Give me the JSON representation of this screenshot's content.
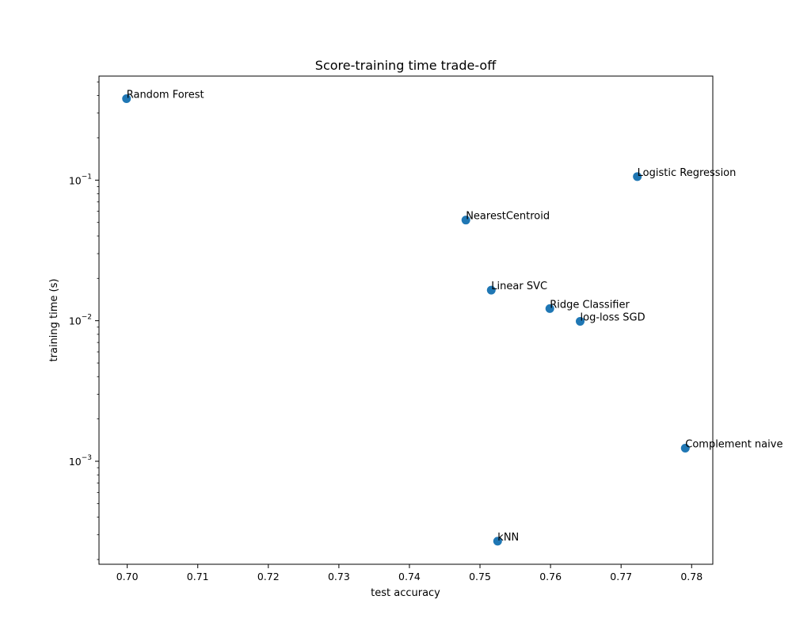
{
  "chart_data": {
    "type": "scatter",
    "title": "Score-training time trade-off",
    "xlabel": "test accuracy",
    "ylabel": "training time (s)",
    "xlim": [
      0.696,
      0.783
    ],
    "ylim": [
      0.000185,
      0.55
    ],
    "yscale": "log",
    "x_ticks": [
      0.7,
      0.71,
      0.72,
      0.73,
      0.74,
      0.75,
      0.76,
      0.77,
      0.78
    ],
    "x_tick_labels": [
      "0.70",
      "0.71",
      "0.72",
      "0.73",
      "0.74",
      "0.75",
      "0.76",
      "0.77",
      "0.78"
    ],
    "y_ticks": [
      0.001,
      0.01,
      0.1
    ],
    "y_tick_base_labels": [
      "10",
      "10",
      "10"
    ],
    "y_tick_exponent_labels": [
      "−3",
      "−2",
      "−1"
    ],
    "grid": false,
    "point_color": "#1f77b4",
    "points": [
      {
        "label": "Random Forest",
        "x": 0.6999,
        "y": 0.38
      },
      {
        "label": "Logistic Regression",
        "x": 0.7723,
        "y": 0.106
      },
      {
        "label": "NearestCentroid",
        "x": 0.748,
        "y": 0.052
      },
      {
        "label": "Linear SVC",
        "x": 0.7516,
        "y": 0.0165
      },
      {
        "label": "Ridge Classifier",
        "x": 0.7599,
        "y": 0.0122
      },
      {
        "label": "log-loss SGD",
        "x": 0.7642,
        "y": 0.0099
      },
      {
        "label": "Complement naive",
        "x": 0.7791,
        "y": 0.00124
      },
      {
        "label": "kNN",
        "x": 0.7525,
        "y": 0.00027
      }
    ]
  }
}
